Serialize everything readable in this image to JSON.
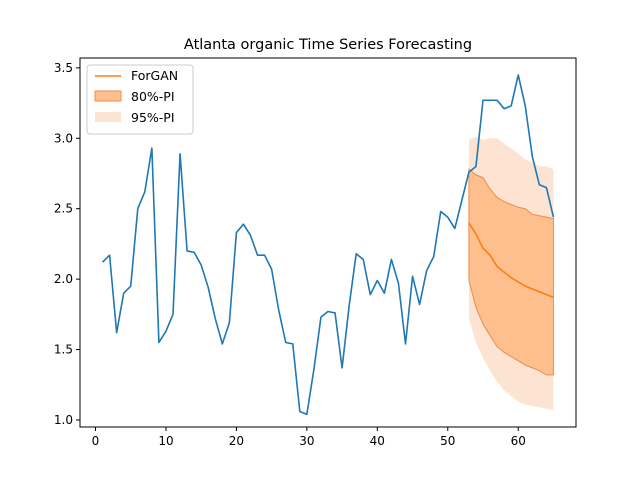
{
  "chart_data": {
    "type": "line",
    "title": "Atlanta organic Time Series Forecasting",
    "xlabel": "",
    "ylabel": "",
    "xlim": [
      -2.2,
      68.2
    ],
    "ylim": [
      0.95,
      3.57
    ],
    "xticks": [
      0,
      10,
      20,
      30,
      40,
      50,
      60
    ],
    "yticks": [
      1.0,
      1.5,
      2.0,
      2.5,
      3.0,
      3.5
    ],
    "ytick_labels": [
      "1.0",
      "1.5",
      "2.0",
      "2.5",
      "3.0",
      "3.5"
    ],
    "grid": false,
    "legend_position": "top-left",
    "legend": [
      "ForGAN",
      "80%-PI",
      "95%-PI"
    ],
    "colors": {
      "actual": "#1f77b4",
      "forecast": "#ff7f0e",
      "pi80_fill": "#fdbf8e",
      "pi80_edge": "#f08a4b",
      "pi95_fill": "#fde4d2"
    },
    "series": [
      {
        "x": [
          1,
          2,
          3,
          4,
          5,
          6,
          7,
          8,
          9,
          10,
          11,
          12,
          13,
          14,
          15,
          16,
          17,
          18,
          19,
          20,
          21,
          22,
          23,
          24,
          25,
          26,
          27,
          28,
          29,
          30,
          31,
          32,
          33,
          34,
          35,
          36,
          37,
          38,
          39,
          40,
          41,
          42,
          43,
          44,
          45,
          46,
          47,
          48,
          49,
          50,
          51,
          52,
          53,
          54,
          55,
          56,
          57,
          58,
          59,
          60,
          61,
          62,
          63,
          64,
          65
        ],
        "values": [
          2.12,
          2.17,
          1.62,
          1.9,
          1.95,
          2.5,
          2.62,
          2.93,
          1.55,
          1.63,
          1.75,
          2.89,
          2.2,
          2.19,
          2.1,
          1.94,
          1.72,
          1.54,
          1.69,
          2.33,
          2.39,
          2.31,
          2.17,
          2.17,
          2.07,
          1.78,
          1.55,
          1.54,
          1.06,
          1.04,
          1.36,
          1.73,
          1.77,
          1.76,
          1.37,
          1.81,
          2.18,
          2.14,
          1.89,
          1.99,
          1.9,
          2.14,
          1.97,
          1.54,
          2.02,
          1.82,
          2.06,
          2.16,
          2.48,
          2.44,
          2.36,
          2.56,
          2.76,
          2.8,
          3.27,
          3.27,
          3.27,
          3.21,
          3.23,
          3.45,
          3.23,
          2.87,
          2.67,
          2.65,
          2.44
        ]
      },
      {
        "name": "ForGAN",
        "x": [
          53,
          54,
          55,
          56,
          57,
          58,
          59,
          60,
          61,
          62,
          63,
          64,
          65
        ],
        "values": [
          2.4,
          2.32,
          2.22,
          2.17,
          2.09,
          2.05,
          2.01,
          1.98,
          1.95,
          1.93,
          1.91,
          1.89,
          1.87
        ]
      },
      {
        "name": "80%-PI",
        "x": [
          53,
          54,
          55,
          56,
          57,
          58,
          59,
          60,
          61,
          62,
          63,
          64,
          65
        ],
        "lower": [
          1.99,
          1.8,
          1.68,
          1.6,
          1.52,
          1.48,
          1.45,
          1.42,
          1.39,
          1.37,
          1.35,
          1.32,
          1.32
        ],
        "upper": [
          2.78,
          2.74,
          2.72,
          2.64,
          2.58,
          2.55,
          2.53,
          2.51,
          2.5,
          2.46,
          2.45,
          2.44,
          2.43
        ]
      },
      {
        "name": "95%-PI",
        "x": [
          53,
          54,
          55,
          56,
          57,
          58,
          59,
          60,
          61,
          62,
          63,
          64,
          65
        ],
        "lower": [
          1.72,
          1.55,
          1.44,
          1.35,
          1.27,
          1.21,
          1.17,
          1.13,
          1.11,
          1.1,
          1.09,
          1.08,
          1.07
        ],
        "upper": [
          2.99,
          3.01,
          2.99,
          3.0,
          3.0,
          2.96,
          2.93,
          2.89,
          2.85,
          2.83,
          2.8,
          2.8,
          2.78
        ]
      }
    ]
  }
}
